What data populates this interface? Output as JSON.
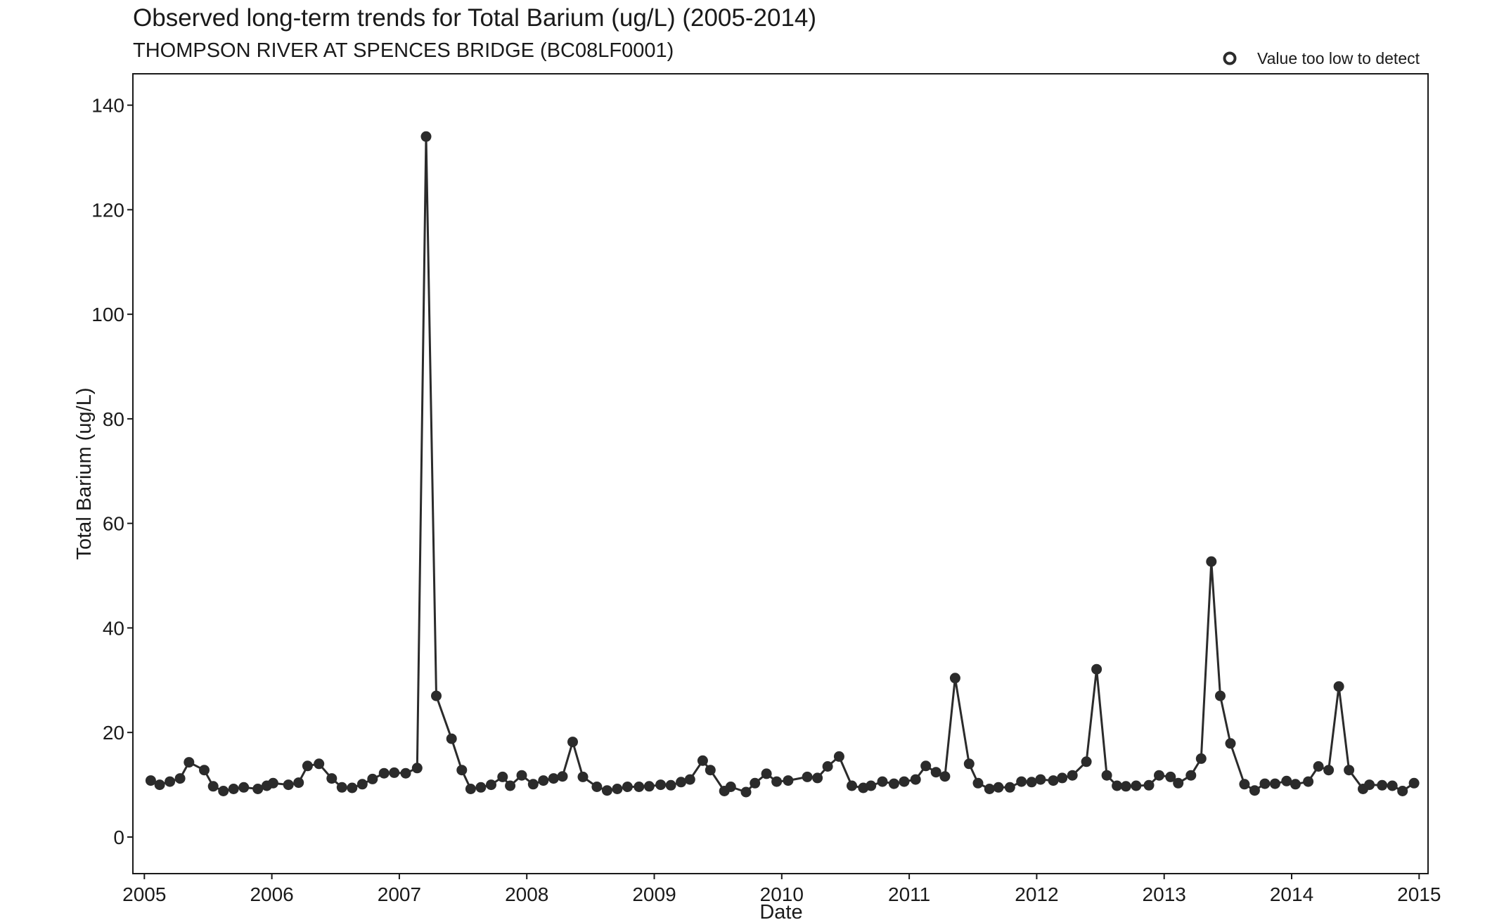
{
  "chart_data": {
    "type": "line",
    "title": "Observed long-term trends for Total Barium (ug/L) (2005-2014)",
    "subtitle": "THOMPSON RIVER AT SPENCES BRIDGE (BC08LF0001)",
    "xlabel": "Date",
    "ylabel": "Total Barium (ug/L)",
    "xlim": [
      2004.91,
      2015.07
    ],
    "ylim": [
      -7,
      146
    ],
    "x_ticks": [
      "2005",
      "2006",
      "2007",
      "2008",
      "2009",
      "2010",
      "2011",
      "2012",
      "2013",
      "2014",
      "2015"
    ],
    "y_ticks": [
      "0",
      "20",
      "40",
      "60",
      "80",
      "100",
      "120",
      "140"
    ],
    "grid": false,
    "legend": {
      "position": "top-right",
      "entries": [
        {
          "label": "Value too low to detect",
          "marker": "open-circle"
        }
      ]
    },
    "colors": {
      "series": "#2b2b2b",
      "axis": "#1a1a1a"
    },
    "series": [
      {
        "points": [
          [
            2005.05,
            10.8
          ],
          [
            2005.12,
            10.0
          ],
          [
            2005.2,
            10.6
          ],
          [
            2005.28,
            11.2
          ],
          [
            2005.35,
            14.3
          ],
          [
            2005.47,
            12.8
          ],
          [
            2005.54,
            9.7
          ],
          [
            2005.62,
            8.8
          ],
          [
            2005.7,
            9.2
          ],
          [
            2005.78,
            9.5
          ],
          [
            2005.89,
            9.2
          ],
          [
            2005.96,
            9.8
          ],
          [
            2006.01,
            10.3
          ],
          [
            2006.13,
            10.0
          ],
          [
            2006.21,
            10.4
          ],
          [
            2006.28,
            13.6
          ],
          [
            2006.37,
            14.0
          ],
          [
            2006.47,
            11.2
          ],
          [
            2006.55,
            9.5
          ],
          [
            2006.63,
            9.4
          ],
          [
            2006.71,
            10.1
          ],
          [
            2006.79,
            11.1
          ],
          [
            2006.88,
            12.2
          ],
          [
            2006.96,
            12.3
          ],
          [
            2007.05,
            12.2
          ],
          [
            2007.14,
            13.2
          ],
          [
            2007.21,
            134.0
          ],
          [
            2007.29,
            27.0
          ],
          [
            2007.41,
            18.8
          ],
          [
            2007.49,
            12.8
          ],
          [
            2007.56,
            9.2
          ],
          [
            2007.64,
            9.5
          ],
          [
            2007.72,
            10.0
          ],
          [
            2007.81,
            11.5
          ],
          [
            2007.87,
            9.8
          ],
          [
            2007.96,
            11.8
          ],
          [
            2008.05,
            10.1
          ],
          [
            2008.13,
            10.8
          ],
          [
            2008.21,
            11.2
          ],
          [
            2008.28,
            11.6
          ],
          [
            2008.36,
            18.2
          ],
          [
            2008.44,
            11.5
          ],
          [
            2008.55,
            9.6
          ],
          [
            2008.63,
            8.9
          ],
          [
            2008.71,
            9.2
          ],
          [
            2008.79,
            9.6
          ],
          [
            2008.88,
            9.6
          ],
          [
            2008.96,
            9.7
          ],
          [
            2009.05,
            10.0
          ],
          [
            2009.13,
            9.9
          ],
          [
            2009.21,
            10.5
          ],
          [
            2009.28,
            11.0
          ],
          [
            2009.38,
            14.6
          ],
          [
            2009.44,
            12.8
          ],
          [
            2009.55,
            8.8
          ],
          [
            2009.6,
            9.6
          ],
          [
            2009.72,
            8.6
          ],
          [
            2009.79,
            10.3
          ],
          [
            2009.88,
            12.1
          ],
          [
            2009.96,
            10.6
          ],
          [
            2010.05,
            10.8
          ],
          [
            2010.2,
            11.5
          ],
          [
            2010.28,
            11.3
          ],
          [
            2010.36,
            13.5
          ],
          [
            2010.45,
            15.4
          ],
          [
            2010.55,
            9.8
          ],
          [
            2010.64,
            9.4
          ],
          [
            2010.7,
            9.8
          ],
          [
            2010.79,
            10.6
          ],
          [
            2010.88,
            10.2
          ],
          [
            2010.96,
            10.6
          ],
          [
            2011.05,
            11.0
          ],
          [
            2011.13,
            13.6
          ],
          [
            2011.21,
            12.4
          ],
          [
            2011.28,
            11.6
          ],
          [
            2011.36,
            30.4
          ],
          [
            2011.47,
            14.0
          ],
          [
            2011.54,
            10.3
          ],
          [
            2011.63,
            9.2
          ],
          [
            2011.7,
            9.5
          ],
          [
            2011.79,
            9.5
          ],
          [
            2011.88,
            10.6
          ],
          [
            2011.96,
            10.5
          ],
          [
            2012.03,
            11.0
          ],
          [
            2012.13,
            10.8
          ],
          [
            2012.2,
            11.3
          ],
          [
            2012.28,
            11.8
          ],
          [
            2012.39,
            14.4
          ],
          [
            2012.47,
            32.1
          ],
          [
            2012.55,
            11.8
          ],
          [
            2012.63,
            9.8
          ],
          [
            2012.7,
            9.7
          ],
          [
            2012.78,
            9.8
          ],
          [
            2012.88,
            9.9
          ],
          [
            2012.96,
            11.8
          ],
          [
            2013.05,
            11.5
          ],
          [
            2013.11,
            10.3
          ],
          [
            2013.21,
            11.8
          ],
          [
            2013.29,
            15.0
          ],
          [
            2013.37,
            52.7
          ],
          [
            2013.44,
            27.0
          ],
          [
            2013.52,
            17.9
          ],
          [
            2013.63,
            10.1
          ],
          [
            2013.71,
            8.9
          ],
          [
            2013.79,
            10.2
          ],
          [
            2013.87,
            10.2
          ],
          [
            2013.96,
            10.7
          ],
          [
            2014.03,
            10.1
          ],
          [
            2014.13,
            10.6
          ],
          [
            2014.21,
            13.5
          ],
          [
            2014.29,
            12.8
          ],
          [
            2014.37,
            28.8
          ],
          [
            2014.45,
            12.8
          ],
          [
            2014.56,
            9.2
          ],
          [
            2014.61,
            10.0
          ],
          [
            2014.71,
            9.9
          ],
          [
            2014.79,
            9.8
          ],
          [
            2014.87,
            8.8
          ],
          [
            2014.96,
            10.3
          ]
        ]
      }
    ]
  }
}
